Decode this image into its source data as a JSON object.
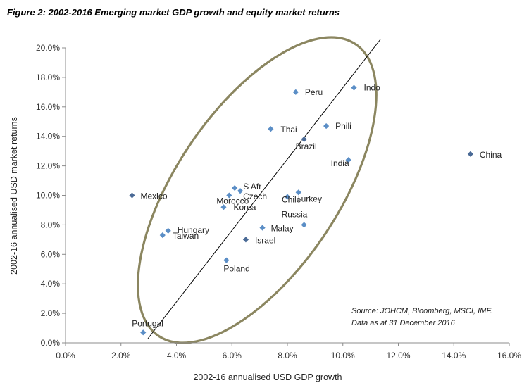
{
  "title": "Figure 2: 2002-2016 Emerging market GDP growth and equity market returns",
  "source_lines": [
    "Source: JOHCM, Bloomberg, MSCI, IMF.",
    "Data as at 31 December  2016"
  ],
  "colors": {
    "point_blue": "#5b8ec6",
    "point_dark": "#4a6a96",
    "ellipse": "#8b8660",
    "trendline": "#000000"
  },
  "chart_data": {
    "type": "scatter",
    "title": "Figure 2: 2002-2016 Emerging market GDP growth and equity market returns",
    "xlabel": "2002-16  annualised USD GDP growth",
    "ylabel": "2002-16 annualised USD market returns",
    "xlim": [
      0,
      16
    ],
    "ylim": [
      0,
      20
    ],
    "x_ticks": [
      "0.0%",
      "2.0%",
      "4.0%",
      "6.0%",
      "8.0%",
      "10.0%",
      "12.0%",
      "14.0%",
      "16.0%"
    ],
    "y_ticks": [
      "0.0%",
      "2.0%",
      "4.0%",
      "6.0%",
      "8.0%",
      "10.0%",
      "12.0%",
      "14.0%",
      "16.0%",
      "18.0%",
      "20.0%"
    ],
    "grid": false,
    "points": [
      {
        "label": "Indo",
        "x": 10.4,
        "y": 17.3
      },
      {
        "label": "Peru",
        "x": 8.3,
        "y": 17.0
      },
      {
        "label": "Phili",
        "x": 9.4,
        "y": 14.7
      },
      {
        "label": "Thai",
        "x": 7.4,
        "y": 14.5
      },
      {
        "label": "Brazil",
        "x": 8.6,
        "y": 13.8
      },
      {
        "label": "China",
        "x": 14.6,
        "y": 12.8
      },
      {
        "label": "India",
        "x": 10.2,
        "y": 12.4
      },
      {
        "label": "S Afr",
        "x": 6.1,
        "y": 10.5
      },
      {
        "label": "Mexico",
        "x": 2.4,
        "y": 10.0
      },
      {
        "label": "Czech",
        "x": 6.3,
        "y": 10.3
      },
      {
        "label": "Morocco",
        "x": 5.9,
        "y": 10.0
      },
      {
        "label": "Chile",
        "x": 8.0,
        "y": 9.9
      },
      {
        "label": "Turkey",
        "x": 8.4,
        "y": 10.2
      },
      {
        "label": "Korea",
        "x": 5.7,
        "y": 9.2
      },
      {
        "label": "Russia",
        "x": 8.6,
        "y": 8.0
      },
      {
        "label": "Malay",
        "x": 7.1,
        "y": 7.8
      },
      {
        "label": "Hungary",
        "x": 3.7,
        "y": 7.6
      },
      {
        "label": "Taiwan",
        "x": 3.5,
        "y": 7.3
      },
      {
        "label": "Israel",
        "x": 6.5,
        "y": 7.0
      },
      {
        "label": "Poland",
        "x": 5.8,
        "y": 5.6
      },
      {
        "label": "Portugal",
        "x": 2.8,
        "y": 0.7
      }
    ]
  }
}
